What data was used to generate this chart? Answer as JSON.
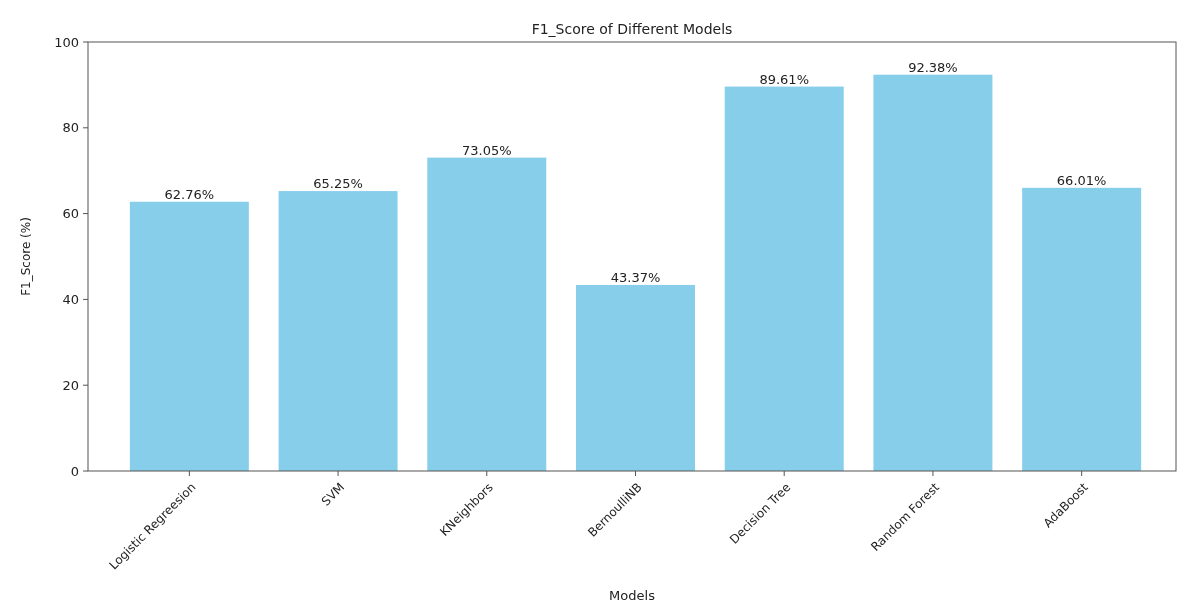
{
  "chart_data": {
    "type": "bar",
    "title": "F1_Score of Different Models",
    "xlabel": "Models",
    "ylabel": "F1_Score (%)",
    "categories": [
      "Logistic Regreesion",
      "SVM",
      "KNeighbors",
      "BernoulliNB",
      "Decision Tree",
      "Random Forest",
      "AdaBoost"
    ],
    "values": [
      62.76,
      65.25,
      73.05,
      43.37,
      89.61,
      92.38,
      66.01
    ],
    "value_labels": [
      "62.76%",
      "65.25%",
      "73.05%",
      "43.37%",
      "89.61%",
      "92.38%",
      "66.01%"
    ],
    "color": "#87ceeb",
    "ylim": [
      0,
      100
    ],
    "yticks": [
      0,
      20,
      40,
      60,
      80,
      100
    ],
    "grid": false
  }
}
